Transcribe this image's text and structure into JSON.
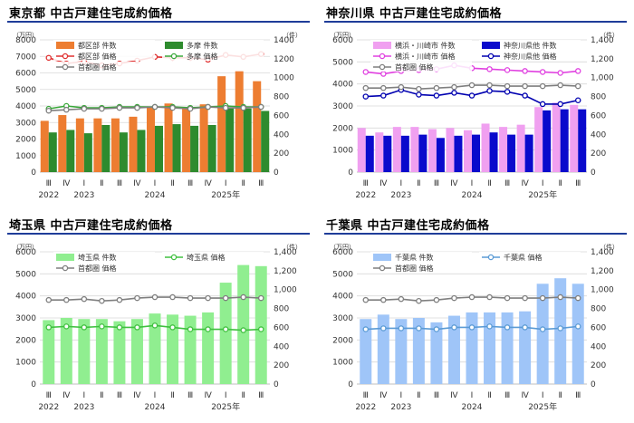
{
  "chart_data": [
    {
      "type": "bar",
      "title": "東京都 中古戸建住宅成約価格",
      "ylabel": "（万円）",
      "y2label": "（件）",
      "ylim": [
        0,
        8000
      ],
      "y2lim": [
        0,
        1400
      ],
      "yticks": [
        "0",
        "1000",
        "2000",
        "3000",
        "4000",
        "5000",
        "6000",
        "7000",
        "8000"
      ],
      "y2ticks": [
        "0",
        "200",
        "400",
        "600",
        "800",
        "1000",
        "1200",
        "1400"
      ],
      "categories": [
        "Ⅲ",
        "Ⅳ",
        "Ⅰ",
        "Ⅱ",
        "Ⅲ",
        "Ⅳ",
        "Ⅰ",
        "Ⅱ",
        "Ⅲ",
        "Ⅳ",
        "Ⅰ",
        "Ⅱ",
        "Ⅲ"
      ],
      "year_labels": [
        {
          "text": "2022",
          "index": 0
        },
        {
          "text": "2023",
          "index": 2
        },
        {
          "text": "2024",
          "index": 6
        },
        {
          "text": "2025年",
          "index": 10
        }
      ],
      "bars": [
        {
          "name": "都区部 件数",
          "color": "#ed7d31",
          "values": [
            3100,
            3450,
            3250,
            3250,
            3250,
            3350,
            3950,
            4150,
            3850,
            4100,
            5800,
            6100,
            5500
          ]
        },
        {
          "name": "多摩 件数",
          "color": "#2e8b2e",
          "values": [
            2400,
            2550,
            2350,
            2850,
            2400,
            2550,
            2800,
            2900,
            2800,
            2850,
            3850,
            3850,
            3700
          ]
        }
      ],
      "lines": [
        {
          "name": "都区部 価格",
          "color": "#e03030",
          "marker": "#e03030",
          "values": [
            1210,
            1150,
            1170,
            1130,
            1150,
            1180,
            1220,
            1210,
            1210,
            1190,
            1240,
            1220,
            1250
          ]
        },
        {
          "name": "多摩 価格",
          "color": "#3aa83a",
          "marker": "#3aa83a",
          "values": [
            670,
            700,
            680,
            680,
            690,
            690,
            690,
            690,
            680,
            690,
            700,
            690,
            690
          ]
        },
        {
          "name": "首都圏 価格",
          "color": "#7f7f7f",
          "marker": "#7f7f7f",
          "values": [
            650,
            660,
            670,
            670,
            680,
            680,
            690,
            680,
            670,
            690,
            680,
            680,
            690
          ]
        }
      ],
      "legend": [
        [
          "都区部 件数",
          "多摩 件数"
        ],
        [
          "都区部 価格",
          "多摩 価格"
        ],
        [
          "首都圏 価格"
        ]
      ]
    },
    {
      "type": "bar",
      "title": "神奈川県 中古戸建住宅成約価格",
      "ylabel": "（万円）",
      "y2label": "（件）",
      "ylim": [
        0,
        6000
      ],
      "y2lim": [
        0,
        1400
      ],
      "yticks": [
        "0",
        "1000",
        "2000",
        "3000",
        "4000",
        "5000",
        "6000"
      ],
      "y2ticks": [
        "0",
        "200",
        "400",
        "600",
        "800",
        "1,000",
        "1,200",
        "1,400"
      ],
      "categories": [
        "Ⅲ",
        "Ⅳ",
        "Ⅰ",
        "Ⅱ",
        "Ⅲ",
        "Ⅳ",
        "Ⅰ",
        "Ⅱ",
        "Ⅲ",
        "Ⅳ",
        "Ⅰ",
        "Ⅱ",
        "Ⅲ"
      ],
      "year_labels": [
        {
          "text": "2022",
          "index": 0
        },
        {
          "text": "2023",
          "index": 2
        },
        {
          "text": "2024",
          "index": 6
        },
        {
          "text": "2025年",
          "index": 10
        }
      ],
      "bars": [
        {
          "name": "横浜・川崎市 件数",
          "color": "#f0a0f0",
          "values": [
            2000,
            1800,
            2050,
            2050,
            1950,
            2000,
            1900,
            2200,
            2050,
            2150,
            2950,
            3150,
            3050
          ]
        },
        {
          "name": "神奈川県他 件数",
          "color": "#0a0acc",
          "values": [
            1650,
            1650,
            1650,
            1700,
            1550,
            1650,
            1700,
            1800,
            1700,
            1700,
            2800,
            2850,
            2850
          ]
        }
      ],
      "lines": [
        {
          "name": "横浜・川崎市 価格",
          "color": "#e040e0",
          "marker": "#e040e0",
          "values": [
            1060,
            1040,
            1070,
            1080,
            1090,
            1130,
            1100,
            1090,
            1080,
            1070,
            1060,
            1050,
            1070
          ]
        },
        {
          "name": "神奈川県他 価格",
          "color": "#0000b0",
          "marker": "#0000b0",
          "values": [
            800,
            810,
            870,
            820,
            810,
            840,
            810,
            860,
            850,
            810,
            720,
            720,
            760
          ]
        },
        {
          "name": "首都圏 価格",
          "color": "#7f7f7f",
          "marker": "#7f7f7f",
          "values": [
            890,
            890,
            900,
            880,
            890,
            900,
            920,
            920,
            910,
            910,
            910,
            920,
            910
          ]
        }
      ],
      "legend": [
        [
          "横浜・川崎市 件数",
          "神奈川県他 件数"
        ],
        [
          "横浜・川崎市 価格",
          "神奈川県他 価格"
        ],
        [
          "首都圏 価格"
        ]
      ]
    },
    {
      "type": "bar",
      "title": "埼玉県 中古戸建住宅成約価格",
      "ylabel": "（万円）",
      "y2label": "（件）",
      "ylim": [
        0,
        6000
      ],
      "y2lim": [
        0,
        1400
      ],
      "yticks": [
        "0",
        "1000",
        "2000",
        "3000",
        "4000",
        "5000",
        "6000"
      ],
      "y2ticks": [
        "0",
        "200",
        "400",
        "600",
        "800",
        "1,000",
        "1,200",
        "1,400"
      ],
      "categories": [
        "Ⅲ",
        "Ⅳ",
        "Ⅰ",
        "Ⅱ",
        "Ⅲ",
        "Ⅳ",
        "Ⅰ",
        "Ⅱ",
        "Ⅲ",
        "Ⅳ",
        "Ⅰ",
        "Ⅱ",
        "Ⅲ"
      ],
      "year_labels": [
        {
          "text": "2022",
          "index": 0
        },
        {
          "text": "2023",
          "index": 2
        },
        {
          "text": "2024",
          "index": 6
        },
        {
          "text": "2025年",
          "index": 10
        }
      ],
      "bars": [
        {
          "name": "埼玉県 件数",
          "color": "#90ee90",
          "values": [
            2900,
            3000,
            2950,
            2950,
            2850,
            2950,
            3200,
            3150,
            3100,
            3250,
            4600,
            5400,
            5350
          ]
        }
      ],
      "lines": [
        {
          "name": "埼玉県 価格",
          "color": "#40c040",
          "marker": "#40c040",
          "values": [
            600,
            610,
            600,
            610,
            600,
            600,
            620,
            600,
            580,
            580,
            580,
            570,
            580
          ]
        },
        {
          "name": "首都圏 価格",
          "color": "#7f7f7f",
          "marker": "#7f7f7f",
          "values": [
            890,
            890,
            900,
            880,
            890,
            910,
            920,
            920,
            910,
            910,
            910,
            920,
            910
          ]
        }
      ],
      "legend": [
        [
          "埼玉県 件数",
          "埼玉県 価格"
        ],
        [
          "首都圏 価格"
        ]
      ]
    },
    {
      "type": "bar",
      "title": "千葉県 中古戸建住宅成約価格",
      "ylabel": "（万円）",
      "y2label": "（件）",
      "ylim": [
        0,
        6000
      ],
      "y2lim": [
        0,
        1400
      ],
      "yticks": [
        "0",
        "1000",
        "2000",
        "3000",
        "4000",
        "5000",
        "6000"
      ],
      "y2ticks": [
        "0",
        "200",
        "400",
        "600",
        "800",
        "1,000",
        "1,200",
        "1,400"
      ],
      "categories": [
        "Ⅲ",
        "Ⅳ",
        "Ⅰ",
        "Ⅱ",
        "Ⅲ",
        "Ⅳ",
        "Ⅰ",
        "Ⅱ",
        "Ⅲ",
        "Ⅳ",
        "Ⅰ",
        "Ⅱ",
        "Ⅲ"
      ],
      "year_labels": [
        {
          "text": "2022",
          "index": 0
        },
        {
          "text": "2023",
          "index": 2
        },
        {
          "text": "2024",
          "index": 6
        },
        {
          "text": "2025年",
          "index": 10
        }
      ],
      "bars": [
        {
          "name": "千葉県 件数",
          "color": "#9fc5f8",
          "values": [
            2950,
            3150,
            2950,
            3000,
            2800,
            3100,
            3250,
            3250,
            3250,
            3300,
            4550,
            4800,
            4550
          ]
        }
      ],
      "lines": [
        {
          "name": "千葉県 価格",
          "color": "#5b9bd5",
          "marker": "#5b9bd5",
          "values": [
            580,
            590,
            590,
            590,
            580,
            600,
            600,
            610,
            600,
            600,
            580,
            590,
            610
          ]
        },
        {
          "name": "首都圏 価格",
          "color": "#7f7f7f",
          "marker": "#7f7f7f",
          "values": [
            890,
            890,
            900,
            880,
            890,
            910,
            920,
            920,
            910,
            910,
            910,
            920,
            910
          ]
        }
      ],
      "legend": [
        [
          "千葉県 件数",
          "千葉県 価格"
        ],
        [
          "首都圏 価格"
        ]
      ]
    }
  ]
}
